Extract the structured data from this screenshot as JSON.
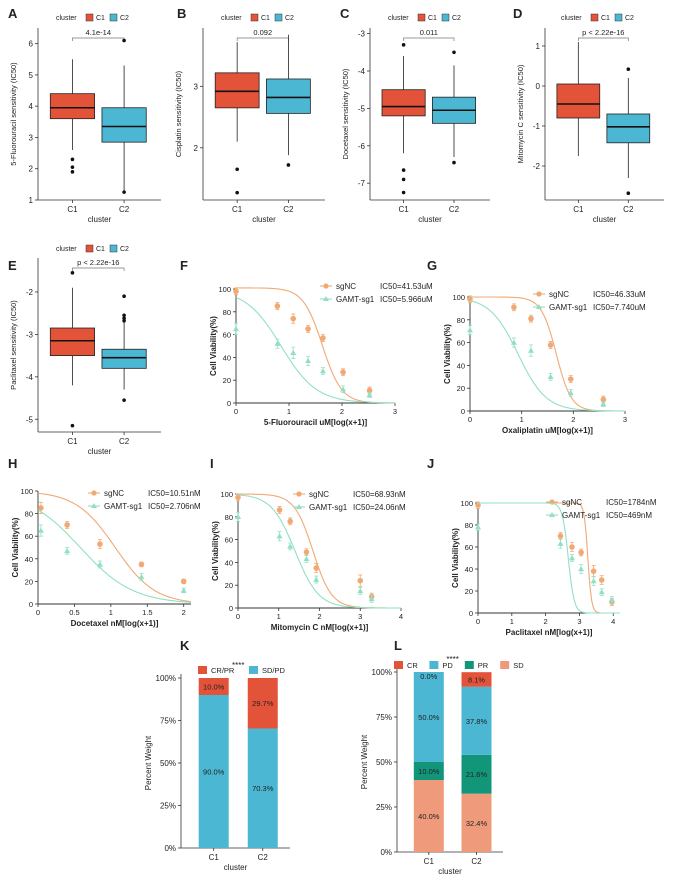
{
  "colors": {
    "c1": "#e3533a",
    "c2": "#4bb7d3",
    "sgnc": "#f1a974",
    "gamt": "#92e0c4",
    "pr": "#12967a",
    "sd": "#f09a7c",
    "axis": "#333333",
    "grid_ref": "#bbbbbb"
  },
  "legend": {
    "title": "cluster",
    "c1": "C1",
    "c2": "C2"
  },
  "chart_data": [
    {
      "id": "A",
      "type": "box",
      "title": "",
      "ylabel": "5-Fluorouracil sensitivity (IC50)",
      "xlabel": "cluster",
      "ylim": [
        1,
        6.5
      ],
      "yticks": [
        1,
        2,
        3,
        4,
        5,
        6
      ],
      "categories": [
        "C1",
        "C2"
      ],
      "pvalue": "4.1e-14",
      "boxes": [
        {
          "whisker_low": 2.6,
          "q1": 3.6,
          "median": 3.95,
          "q3": 4.4,
          "whisker_high": 5.5,
          "outliers": [
            2.3,
            2.05,
            1.9
          ]
        },
        {
          "whisker_low": 1.3,
          "q1": 2.85,
          "median": 3.35,
          "q3": 3.95,
          "whisker_high": 5.3,
          "outliers": [
            6.1,
            1.25
          ]
        }
      ]
    },
    {
      "id": "B",
      "type": "box",
      "title": "",
      "ylabel": "Cisplatin sensitivity (IC50)",
      "xlabel": "cluster",
      "ylim": [
        1.15,
        3.95
      ],
      "yticks": [
        2,
        3
      ],
      "categories": [
        "C1",
        "C2"
      ],
      "pvalue": "0.092",
      "boxes": [
        {
          "whisker_low": 2.1,
          "q1": 2.65,
          "median": 2.92,
          "q3": 3.22,
          "whisker_high": 3.72,
          "outliers": [
            1.65,
            1.27
          ]
        },
        {
          "whisker_low": 1.88,
          "q1": 2.56,
          "median": 2.82,
          "q3": 3.12,
          "whisker_high": 3.84,
          "outliers": [
            1.72
          ]
        }
      ]
    },
    {
      "id": "C",
      "type": "box",
      "title": "",
      "ylabel": "Docetaxel sensitivity (IC50)",
      "xlabel": "cluster",
      "ylim": [
        -7.45,
        -2.85
      ],
      "yticks": [
        -7,
        -6,
        -5,
        -4,
        -3
      ],
      "categories": [
        "C1",
        "C2"
      ],
      "pvalue": "0.011",
      "boxes": [
        {
          "whisker_low": -6.2,
          "q1": -5.2,
          "median": -4.95,
          "q3": -4.5,
          "whisker_high": -3.6,
          "outliers": [
            -3.3,
            -6.65,
            -6.9,
            -7.25
          ]
        },
        {
          "whisker_low": -6.3,
          "q1": -5.4,
          "median": -5.05,
          "q3": -4.7,
          "whisker_high": -3.85,
          "outliers": [
            -3.5,
            -6.45
          ]
        }
      ]
    },
    {
      "id": "D",
      "type": "box",
      "title": "",
      "ylabel": "Mitomycin C sensitivity (IC50)",
      "xlabel": "cluster",
      "ylim": [
        -2.85,
        1.45
      ],
      "yticks": [
        -2,
        -1,
        0,
        1
      ],
      "categories": [
        "C1",
        "C2"
      ],
      "pvalue": "p < 2.22e-16",
      "boxes": [
        {
          "whisker_low": -1.75,
          "q1": -0.8,
          "median": -0.45,
          "q3": 0.05,
          "whisker_high": 1.1,
          "outliers": []
        },
        {
          "whisker_low": -2.3,
          "q1": -1.42,
          "median": -1.02,
          "q3": -0.7,
          "whisker_high": 0.2,
          "outliers": [
            0.42,
            -2.68
          ]
        }
      ]
    },
    {
      "id": "E",
      "type": "box",
      "title": "",
      "ylabel": "Paclitaxel sensitivity (IC50)",
      "xlabel": "cluster",
      "ylim": [
        -5.3,
        -1.2
      ],
      "yticks": [
        -5,
        -4,
        -3,
        -2
      ],
      "categories": [
        "C1",
        "C2"
      ],
      "pvalue": "p < 2.22e-16",
      "boxes": [
        {
          "whisker_low": -4.2,
          "q1": -3.5,
          "median": -3.15,
          "q3": -2.85,
          "whisker_high": -1.9,
          "outliers": [
            -1.55,
            -5.15
          ]
        },
        {
          "whisker_low": -4.3,
          "q1": -3.8,
          "median": -3.55,
          "q3": -3.35,
          "whisker_high": -2.7,
          "outliers": [
            -2.1,
            -2.55,
            -2.62,
            -2.68,
            -4.55
          ]
        }
      ]
    },
    {
      "id": "F",
      "type": "line",
      "xlabel": "5-Fluorouracil uM[log(x+1)]",
      "ylabel": "Cell Viability(%)",
      "xlim": [
        0,
        3
      ],
      "ylim": [
        0,
        100
      ],
      "xticks": [
        0,
        1,
        2,
        3
      ],
      "yticks": [
        0,
        20,
        40,
        60,
        80,
        100
      ],
      "series": [
        {
          "name": "sgNC",
          "ic50": "IC50=41.53uM",
          "color_key": "sgnc",
          "x": [
            0.0,
            0.78,
            1.08,
            1.36,
            1.64,
            2.02,
            2.52
          ],
          "y": [
            98,
            85,
            74,
            65,
            57,
            27,
            11
          ],
          "err": [
            3,
            3,
            4,
            3,
            3,
            3,
            3
          ],
          "fit_ic50": 1.63,
          "fit_hill": 2.4,
          "fit_top": 101
        },
        {
          "name": "GAMT-sg1",
          "ic50": "IC50=5.966uM",
          "color_key": "gamt",
          "x": [
            0.0,
            0.78,
            1.08,
            1.36,
            1.64,
            2.02,
            2.52
          ],
          "y": [
            65,
            52,
            44,
            37,
            28,
            12,
            7
          ],
          "err": [
            5,
            4,
            5,
            4,
            3,
            3,
            2
          ],
          "fit_ic50": 0.85,
          "fit_hill": 1.3,
          "fit_top": 100
        }
      ]
    },
    {
      "id": "G",
      "type": "line",
      "xlabel": "Oxaliplatin uM[log(x+1)]",
      "ylabel": "Cell Viability(%)",
      "xlim": [
        0,
        3
      ],
      "ylim": [
        0,
        100
      ],
      "xticks": [
        0,
        1,
        2,
        3
      ],
      "yticks": [
        0,
        20,
        40,
        60,
        80,
        100
      ],
      "series": [
        {
          "name": "sgNC",
          "ic50": "IC50=46.33uM",
          "color_key": "sgnc",
          "x": [
            0.0,
            0.85,
            1.18,
            1.56,
            1.95,
            2.58
          ],
          "y": [
            98,
            91,
            81,
            58,
            28,
            10
          ],
          "err": [
            3,
            3,
            3,
            3,
            3,
            3
          ],
          "fit_ic50": 1.67,
          "fit_hill": 3.0,
          "fit_top": 100
        },
        {
          "name": "GAMT-sg1",
          "ic50": "IC50=7.740uM",
          "color_key": "gamt",
          "x": [
            0.0,
            0.85,
            1.18,
            1.56,
            1.95,
            2.58
          ],
          "y": [
            71,
            60,
            53,
            30,
            16,
            6
          ],
          "err": [
            4,
            4,
            5,
            3,
            3,
            2
          ],
          "fit_ic50": 0.93,
          "fit_hill": 1.6,
          "fit_top": 100
        }
      ]
    },
    {
      "id": "H",
      "type": "line",
      "xlabel": "Docetaxel nM[log(x+1)]",
      "ylabel": "Cell Viability(%)",
      "xlim": [
        0,
        2.1
      ],
      "ylim": [
        0,
        100
      ],
      "xticks": [
        0.0,
        0.5,
        1.0,
        1.5,
        2.0
      ],
      "yticks": [
        0,
        20,
        40,
        60,
        80,
        100
      ],
      "series": [
        {
          "name": "sgNC",
          "ic50": "IC50=10.51nM",
          "color_key": "sgnc",
          "x": [
            0.04,
            0.4,
            0.85,
            1.42,
            2.0
          ],
          "y": [
            85,
            70,
            53,
            35,
            20
          ],
          "err": [
            5,
            3,
            4,
            2,
            2
          ],
          "fit_ic50": 1.06,
          "fit_hill": 1.6,
          "fit_top": 100
        },
        {
          "name": "GAMT-sg1",
          "ic50": "IC50=2.706nM",
          "color_key": "gamt",
          "x": [
            0.04,
            0.4,
            0.85,
            1.42,
            2.0
          ],
          "y": [
            65,
            47,
            35,
            24,
            12
          ],
          "err": [
            5,
            3,
            3,
            3,
            2
          ],
          "fit_ic50": 0.58,
          "fit_hill": 1.2,
          "fit_top": 100
        }
      ]
    },
    {
      "id": "I",
      "type": "line",
      "xlabel": "Mitomycin C nM[log(x+1)]",
      "ylabel": "Cell Viability(%)",
      "xlim": [
        0,
        4
      ],
      "ylim": [
        0,
        100
      ],
      "xticks": [
        0,
        1,
        2,
        3,
        4
      ],
      "yticks": [
        0,
        20,
        40,
        60,
        80,
        100
      ],
      "series": [
        {
          "name": "sgNC",
          "ic50": "IC50=68.93nM",
          "color_key": "sgnc",
          "x": [
            0.0,
            1.02,
            1.28,
            1.68,
            1.92,
            3.0,
            3.28
          ],
          "y": [
            97,
            86,
            76,
            49,
            35,
            24,
            10
          ],
          "err": [
            3,
            3,
            3,
            3,
            4,
            5,
            3
          ],
          "fit_ic50": 1.84,
          "fit_hill": 1.9,
          "fit_top": 100
        },
        {
          "name": "GAMT-sg1",
          "ic50": "IC50=24.06nM",
          "color_key": "gamt",
          "x": [
            0.0,
            1.02,
            1.28,
            1.68,
            1.92,
            3.0,
            3.28
          ],
          "y": [
            80,
            63,
            54,
            43,
            25,
            15,
            8
          ],
          "err": [
            4,
            4,
            3,
            3,
            3,
            3,
            3
          ],
          "fit_ic50": 1.4,
          "fit_hill": 1.5,
          "fit_top": 100
        }
      ]
    },
    {
      "id": "J",
      "type": "line",
      "xlabel": "Paclitaxel nM[log(x+1)]",
      "ylabel": "Cell Viability(%)",
      "xlim": [
        0,
        4.2
      ],
      "ylim": [
        0,
        100
      ],
      "xticks": [
        0,
        1,
        2,
        3,
        4
      ],
      "yticks": [
        0,
        20,
        40,
        60,
        80,
        100
      ],
      "series": [
        {
          "name": "sgNC",
          "ic50": "IC50=1784nM",
          "color_key": "sgnc",
          "x": [
            0.0,
            2.44,
            2.78,
            3.05,
            3.42,
            3.66,
            3.96
          ],
          "y": [
            98,
            70,
            60,
            55,
            38,
            30,
            10
          ],
          "err": [
            3,
            3,
            4,
            3,
            5,
            4,
            3
          ],
          "fit_ic50": 3.25,
          "fit_hill": 8,
          "fit_top": 100
        },
        {
          "name": "GAMT-sg1",
          "ic50": "IC50=469nM",
          "color_key": "gamt",
          "x": [
            0.0,
            2.44,
            2.78,
            3.05,
            3.42,
            3.66,
            3.96
          ],
          "y": [
            78,
            63,
            50,
            40,
            29,
            19,
            12
          ],
          "err": [
            3,
            4,
            3,
            4,
            4,
            3,
            3
          ],
          "fit_ic50": 2.67,
          "fit_hill": 5,
          "fit_top": 100
        }
      ]
    },
    {
      "id": "K",
      "type": "stacked_bar",
      "xlabel": "cluster",
      "ylabel": "Percent Weight",
      "categories": [
        "C1",
        "C2"
      ],
      "sig": "****",
      "yticks": [
        "0%",
        "25%",
        "50%",
        "75%",
        "100%"
      ],
      "legend": [
        "CR/PR",
        "SD/PD"
      ],
      "series": [
        {
          "name": "SD/PD",
          "color_key": "c2",
          "values": [
            90.0,
            70.3
          ],
          "labels": [
            "90.0%",
            "70.3%"
          ]
        },
        {
          "name": "CR/PR",
          "color_key": "c1",
          "values": [
            10.0,
            29.7
          ],
          "labels": [
            "10.0%",
            "29.7%"
          ]
        }
      ]
    },
    {
      "id": "L",
      "type": "stacked_bar",
      "xlabel": "cluster",
      "ylabel": "Percent Weight",
      "categories": [
        "C1",
        "C2"
      ],
      "sig": "****",
      "yticks": [
        "0%",
        "25%",
        "50%",
        "75%",
        "100%"
      ],
      "legend": [
        "CR",
        "PD",
        "PR",
        "SD"
      ],
      "series": [
        {
          "name": "SD",
          "color_key": "sd",
          "values": [
            40.0,
            32.4
          ],
          "labels": [
            "40.0%",
            "32.4%"
          ]
        },
        {
          "name": "PR",
          "color_key": "pr",
          "values": [
            10.0,
            21.6
          ],
          "labels": [
            "10.0%",
            "21.6%"
          ]
        },
        {
          "name": "PD",
          "color_key": "c2",
          "values": [
            50.0,
            37.8
          ],
          "labels": [
            "50.0%",
            "37.8%"
          ]
        },
        {
          "name": "CR",
          "color_key": "c1",
          "values": [
            0.0,
            8.1
          ],
          "labels": [
            "0.0%",
            "8.1%"
          ]
        }
      ]
    }
  ]
}
